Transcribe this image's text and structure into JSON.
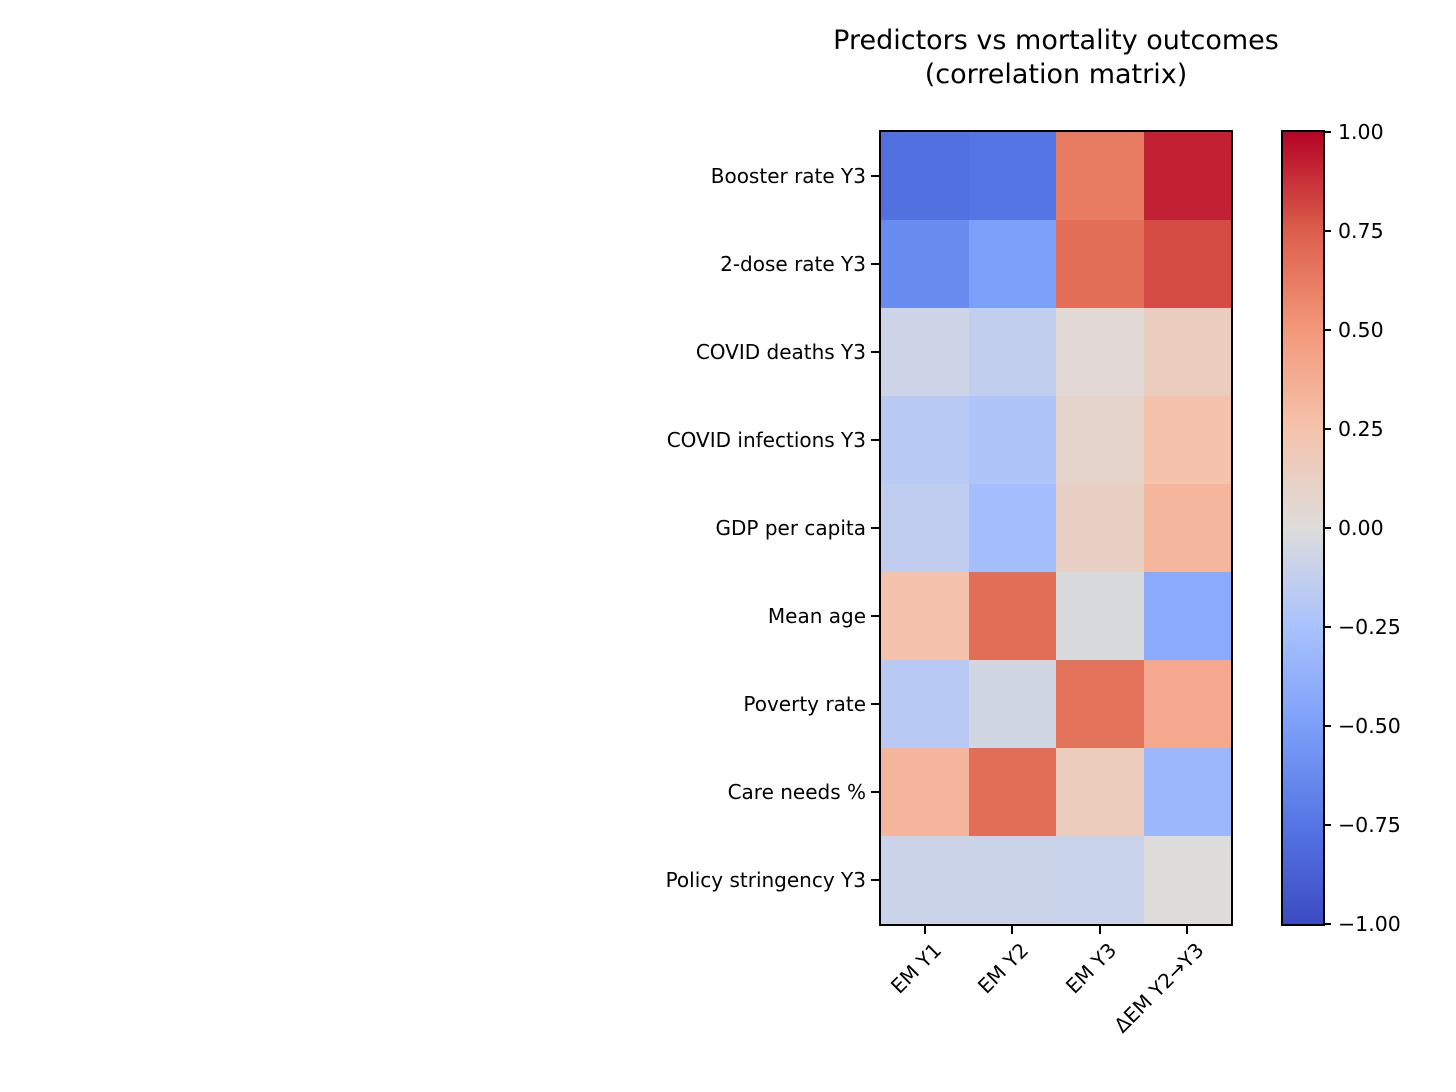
{
  "figure": {
    "title_line1": "Predictors vs mortality outcomes",
    "title_line2": "(correlation matrix)",
    "background_color": "#ffffff",
    "text_color": "#000000",
    "spine_color": "#000000"
  },
  "chart_data": {
    "type": "heatmap",
    "title": "Predictors vs mortality outcomes (correlation matrix)",
    "rows": [
      "Booster rate Y3",
      "2-dose rate Y3",
      "COVID deaths Y3",
      "COVID infections Y3",
      "GDP per capita",
      "Mean age",
      "Poverty rate",
      "Care needs %",
      "Policy stringency Y3"
    ],
    "columns": [
      "EM Y1",
      "EM Y2",
      "EM Y3",
      "ΔEM Y2→Y3"
    ],
    "values": [
      [
        -0.78,
        -0.75,
        0.62,
        0.92
      ],
      [
        -0.62,
        -0.5,
        0.68,
        0.8
      ],
      [
        -0.08,
        -0.13,
        0.03,
        0.15
      ],
      [
        -0.18,
        -0.22,
        0.08,
        0.25
      ],
      [
        -0.14,
        -0.28,
        0.12,
        0.32
      ],
      [
        0.25,
        0.68,
        -0.02,
        -0.42
      ],
      [
        -0.18,
        -0.06,
        0.66,
        0.4
      ],
      [
        0.33,
        0.68,
        0.16,
        -0.32
      ],
      [
        -0.09,
        -0.09,
        -0.1,
        0.0
      ]
    ],
    "vmin": -1.0,
    "vmax": 1.0,
    "colormap": "coolwarm",
    "colormap_stops": [
      {
        "t": 0.0,
        "rgb": [
          59,
          76,
          192
        ]
      },
      {
        "t": 0.125,
        "rgb": [
          86,
          117,
          228
        ]
      },
      {
        "t": 0.25,
        "rgb": [
          124,
          159,
          249
        ]
      },
      {
        "t": 0.375,
        "rgb": [
          169,
          194,
          254
        ]
      },
      {
        "t": 0.5,
        "rgb": [
          221,
          220,
          219
        ]
      },
      {
        "t": 0.625,
        "rgb": [
          245,
          195,
          172
        ]
      },
      {
        "t": 0.75,
        "rgb": [
          243,
          152,
          122
        ]
      },
      {
        "t": 0.875,
        "rgb": [
          220,
          94,
          75
        ]
      },
      {
        "t": 1.0,
        "rgb": [
          180,
          4,
          38
        ]
      }
    ],
    "colorbar_ticks": [
      "1.00",
      "0.75",
      "0.50",
      "0.25",
      "0.00",
      "−0.25",
      "−0.50",
      "−0.75",
      "−1.00"
    ],
    "colorbar_position": "right",
    "grid": false
  }
}
